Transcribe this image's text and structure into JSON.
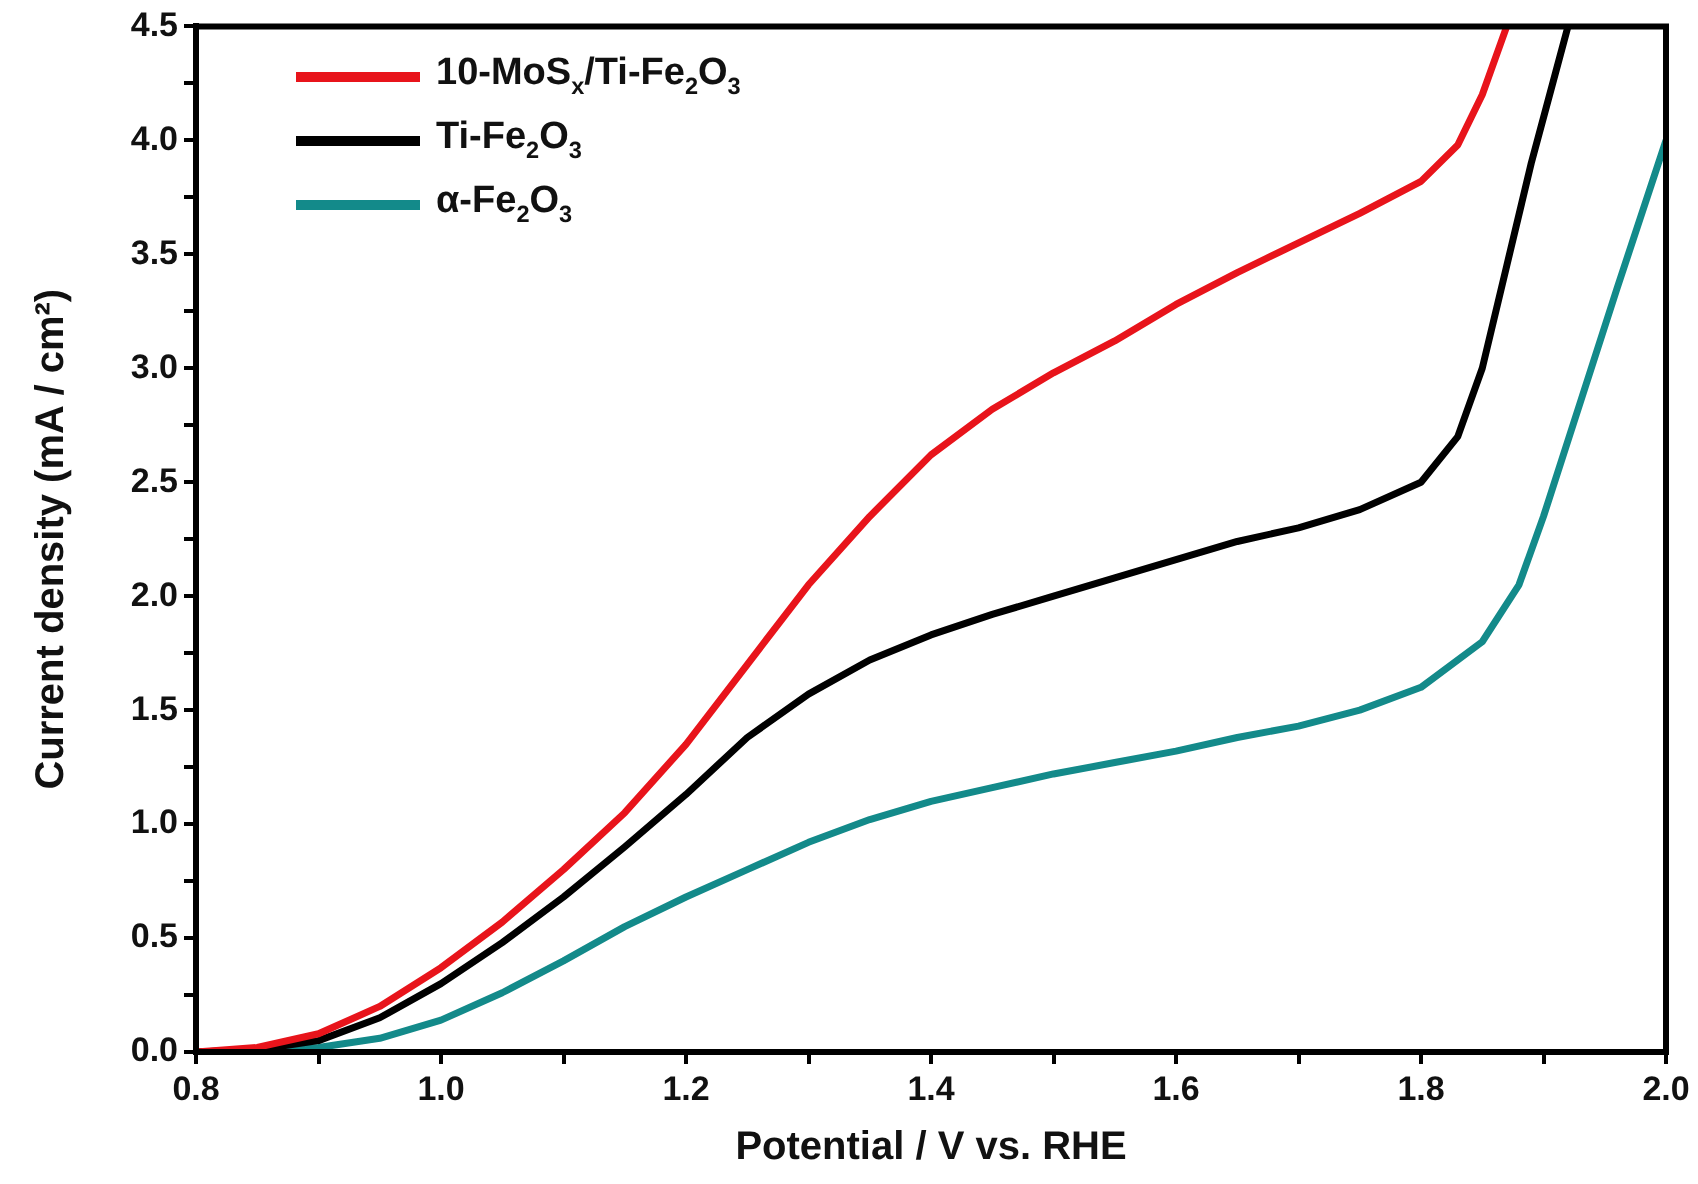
{
  "chart_data": {
    "type": "line",
    "xlabel": "Potential / V vs. RHE",
    "ylabel": "Current density (mA / cm²)",
    "xlim": [
      0.8,
      2.0
    ],
    "xticks": [
      {
        "value": 0.8,
        "label": "0.8"
      },
      {
        "value": 0.9,
        "label": null
      },
      {
        "value": 1.0,
        "label": "1.0"
      },
      {
        "value": 1.1,
        "label": null
      },
      {
        "value": 1.2,
        "label": "1.2"
      },
      {
        "value": 1.3,
        "label": null
      },
      {
        "value": 1.4,
        "label": "1.4"
      },
      {
        "value": 1.5,
        "label": null
      },
      {
        "value": 1.6,
        "label": "1.6"
      },
      {
        "value": 1.7,
        "label": null
      },
      {
        "value": 1.8,
        "label": "1.8"
      },
      {
        "value": 1.9,
        "label": null
      },
      {
        "value": 2.0,
        "label": "2.0"
      }
    ],
    "ylim": [
      0,
      4.5
    ],
    "yticks": [
      {
        "value": 0,
        "label": "0.0"
      },
      {
        "value": 0.25,
        "label": null
      },
      {
        "value": 0.5,
        "label": "0.5"
      },
      {
        "value": 0.75,
        "label": null
      },
      {
        "value": 1,
        "label": "1.0"
      },
      {
        "value": 1.25,
        "label": null
      },
      {
        "value": 1.5,
        "label": "1.5"
      },
      {
        "value": 1.75,
        "label": null
      },
      {
        "value": 2,
        "label": "2.0"
      },
      {
        "value": 2.25,
        "label": null
      },
      {
        "value": 2.5,
        "label": "2.5"
      },
      {
        "value": 2.75,
        "label": null
      },
      {
        "value": 3,
        "label": "3.0"
      },
      {
        "value": 3.25,
        "label": null
      },
      {
        "value": 3.5,
        "label": "3.5"
      },
      {
        "value": 3.75,
        "label": null
      },
      {
        "value": 4,
        "label": "4.0"
      },
      {
        "value": 4.25,
        "label": null
      },
      {
        "value": 4.5,
        "label": "4.5"
      }
    ],
    "grid": false,
    "legend": "top left",
    "marker": "none",
    "line_style": "solid",
    "series": [
      {
        "name": "10-MoS$_{x}$/Ti-Fe$_{2}$O$_{3}$",
        "color": "#e8141b",
        "x": [
          0.8,
          0.85,
          0.9,
          0.95,
          1.0,
          1.05,
          1.1,
          1.15,
          1.2,
          1.25,
          1.3,
          1.35,
          1.4,
          1.45,
          1.5,
          1.55,
          1.6,
          1.65,
          1.7,
          1.75,
          1.8,
          1.83,
          1.85,
          1.87
        ],
        "values": [
          0,
          0.02,
          0.08,
          0.2,
          0.37,
          0.57,
          0.8,
          1.05,
          1.35,
          1.7,
          2.05,
          2.35,
          2.62,
          2.82,
          2.98,
          3.12,
          3.28,
          3.42,
          3.55,
          3.68,
          3.82,
          3.98,
          4.2,
          4.5
        ]
      },
      {
        "name": "Ti-Fe$_{2}$O$_{3}$",
        "color": "#000000",
        "x": [
          0.8,
          0.85,
          0.9,
          0.95,
          1.0,
          1.05,
          1.1,
          1.15,
          1.2,
          1.25,
          1.3,
          1.35,
          1.4,
          1.45,
          1.5,
          1.55,
          1.6,
          1.65,
          1.7,
          1.75,
          1.8,
          1.83,
          1.85,
          1.87,
          1.89,
          1.91,
          1.92
        ],
        "values": [
          0,
          0.01,
          0.05,
          0.15,
          0.3,
          0.48,
          0.68,
          0.9,
          1.13,
          1.38,
          1.57,
          1.72,
          1.83,
          1.92,
          2.0,
          2.08,
          2.16,
          2.24,
          2.3,
          2.38,
          2.5,
          2.7,
          3.0,
          3.45,
          3.9,
          4.3,
          4.5
        ]
      },
      {
        "name": "α-Fe$_{2}$O$_{3}$",
        "color": "#138a8a",
        "x": [
          0.8,
          0.9,
          0.95,
          1.0,
          1.05,
          1.1,
          1.15,
          1.2,
          1.25,
          1.3,
          1.35,
          1.4,
          1.45,
          1.5,
          1.55,
          1.6,
          1.65,
          1.7,
          1.75,
          1.8,
          1.85,
          1.88,
          1.9,
          1.93,
          1.96,
          2.0
        ],
        "values": [
          0,
          0.02,
          0.06,
          0.14,
          0.26,
          0.4,
          0.55,
          0.68,
          0.8,
          0.92,
          1.02,
          1.1,
          1.16,
          1.22,
          1.27,
          1.32,
          1.38,
          1.43,
          1.5,
          1.6,
          1.8,
          2.05,
          2.35,
          2.85,
          3.35,
          4.0
        ]
      }
    ]
  }
}
